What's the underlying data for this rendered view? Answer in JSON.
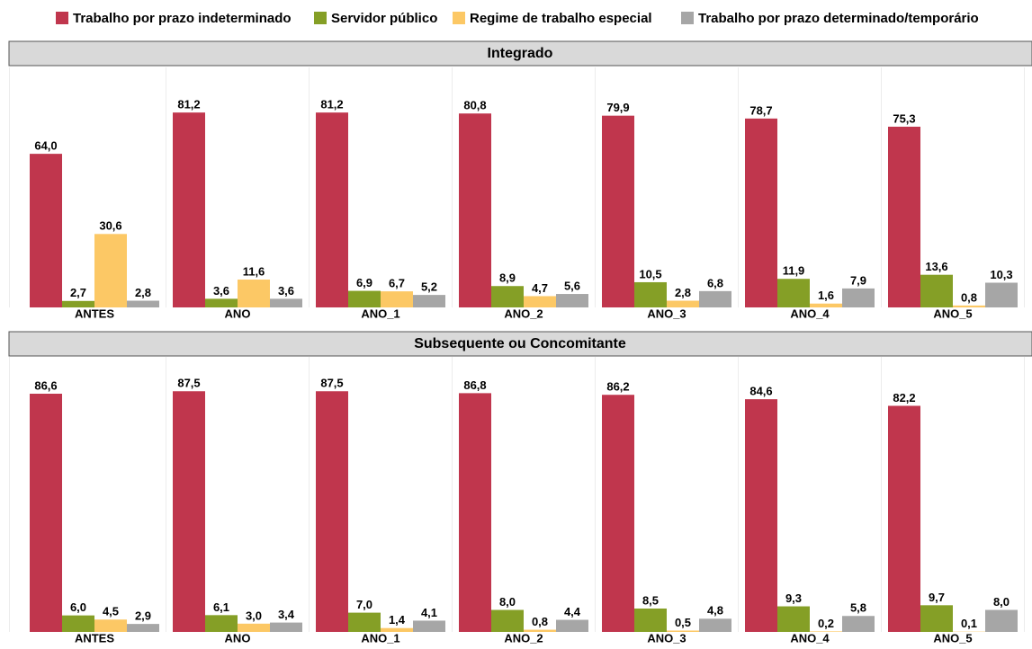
{
  "chart_data": [
    {
      "type": "bar",
      "title": "Integrado",
      "categories": [
        "ANTES",
        "ANO",
        "ANO_1",
        "ANO_2",
        "ANO_3",
        "ANO_4",
        "ANO_5"
      ],
      "ylim": [
        0,
        100
      ],
      "series": [
        {
          "name": "Trabalho por prazo indeterminado",
          "color": "#c0364d",
          "values": [
            64.0,
            81.2,
            81.2,
            80.8,
            79.9,
            78.7,
            75.3
          ],
          "value_labels": [
            "64,0",
            "81,2",
            "81,2",
            "80,8",
            "79,9",
            "78,7",
            "75,3"
          ]
        },
        {
          "name": "Servidor público",
          "color": "#859f26",
          "values": [
            2.7,
            3.6,
            6.9,
            8.9,
            10.5,
            11.9,
            13.6
          ],
          "value_labels": [
            "2,7",
            "3,6",
            "6,9",
            "8,9",
            "10,5",
            "11,9",
            "13,6"
          ]
        },
        {
          "name": "Regime de trabalho especial",
          "color": "#fcc865",
          "values": [
            30.6,
            11.6,
            6.7,
            4.7,
            2.8,
            1.6,
            0.8
          ],
          "value_labels": [
            "30,6",
            "11,6",
            "6,7",
            "4,7",
            "2,8",
            "1,6",
            "0,8"
          ]
        },
        {
          "name": "Trabalho por prazo determinado/temporário",
          "color": "#a6a6a6",
          "values": [
            2.8,
            3.6,
            5.2,
            5.6,
            6.8,
            7.9,
            10.3
          ],
          "value_labels": [
            "2,8",
            "3,6",
            "5,2",
            "5,6",
            "6,8",
            "7,9",
            "10,3"
          ]
        }
      ]
    },
    {
      "type": "bar",
      "title": "Subsequente ou Concomitante",
      "categories": [
        "ANTES",
        "ANO",
        "ANO_1",
        "ANO_2",
        "ANO_3",
        "ANO_4",
        "ANO_5"
      ],
      "ylim": [
        0,
        100
      ],
      "series": [
        {
          "name": "Trabalho por prazo indeterminado",
          "color": "#c0364d",
          "values": [
            86.6,
            87.5,
            87.5,
            86.8,
            86.2,
            84.6,
            82.2
          ],
          "value_labels": [
            "86,6",
            "87,5",
            "87,5",
            "86,8",
            "86,2",
            "84,6",
            "82,2"
          ]
        },
        {
          "name": "Servidor público",
          "color": "#859f26",
          "values": [
            6.0,
            6.1,
            7.0,
            8.0,
            8.5,
            9.3,
            9.7
          ],
          "value_labels": [
            "6,0",
            "6,1",
            "7,0",
            "8,0",
            "8,5",
            "9,3",
            "9,7"
          ]
        },
        {
          "name": "Regime de trabalho especial",
          "color": "#fcc865",
          "values": [
            4.5,
            3.0,
            1.4,
            0.8,
            0.5,
            0.2,
            0.1
          ],
          "value_labels": [
            "4,5",
            "3,0",
            "1,4",
            "0,8",
            "0,5",
            "0,2",
            "0,1"
          ]
        },
        {
          "name": "Trabalho por prazo determinado/temporário",
          "color": "#a6a6a6",
          "values": [
            2.9,
            3.4,
            4.1,
            4.4,
            4.8,
            5.8,
            8.0
          ],
          "value_labels": [
            "2,9",
            "3,4",
            "4,1",
            "4,4",
            "4,8",
            "5,8",
            "8,0"
          ]
        }
      ]
    }
  ]
}
